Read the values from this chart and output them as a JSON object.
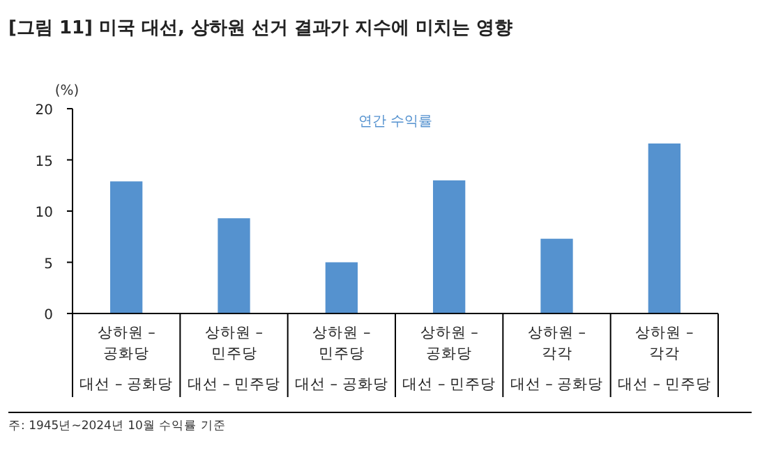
{
  "chart_data": {
    "type": "bar",
    "title": "[그림 11] 미국 대선, 상하원 선거 결과가 지수에 미치는 영향",
    "ylabel": "(%)",
    "categories": [
      "상하원 –\n공화당\n대선 – 공화당",
      "상하원 –\n민주당\n대선 – 민주당",
      "상하원 –\n민주당\n대선 – 공화당",
      "상하원 –\n공화당\n대선 – 민주당",
      "상하원 –\n각각\n대선 – 공화당",
      "상하원 –\n각각\n대선 – 민주당"
    ],
    "series": [
      {
        "name": "연간 수익률",
        "color": "#5592cf",
        "values": [
          12.9,
          9.3,
          5.0,
          13.0,
          7.3,
          16.6
        ]
      }
    ],
    "ylim": [
      0,
      20
    ],
    "yticks": [
      0,
      5,
      10,
      15,
      20
    ],
    "grid": false,
    "legend": "top",
    "annotations": [
      "주: 1945년~2024년 10월 수익률 기준"
    ]
  }
}
